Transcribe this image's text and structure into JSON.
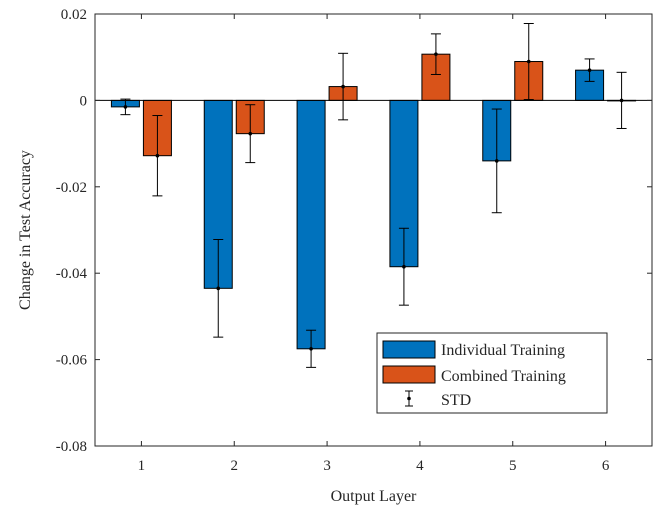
{
  "chart_data": {
    "type": "bar",
    "title": "",
    "xlabel": "Output Layer",
    "ylabel": "Change in Test Accuracy",
    "categories": [
      "1",
      "2",
      "3",
      "4",
      "5",
      "6"
    ],
    "ylim": [
      -0.08,
      0.02
    ],
    "yticks": [
      0.02,
      0,
      -0.02,
      -0.04,
      -0.06,
      -0.08
    ],
    "ytick_labels": [
      "0.02",
      "0",
      "-0.02",
      "-0.04",
      "-0.06",
      "-0.08"
    ],
    "grid": false,
    "legend_position": "bottom-right",
    "series": [
      {
        "name": "Individual Training",
        "color": "#0072bd",
        "values": [
          -0.0015,
          -0.0435,
          -0.0575,
          -0.0385,
          -0.014,
          0.007
        ],
        "std": [
          0.0018,
          0.0113,
          0.0043,
          0.0089,
          0.012,
          0.0026
        ]
      },
      {
        "name": "Combined Training",
        "color": "#d95319",
        "values": [
          -0.0128,
          -0.0077,
          0.0032,
          0.0107,
          0.009,
          0.0
        ],
        "std": [
          0.0093,
          0.0067,
          0.0077,
          0.0047,
          0.0088,
          0.0065
        ]
      }
    ],
    "error_legend": "STD"
  }
}
